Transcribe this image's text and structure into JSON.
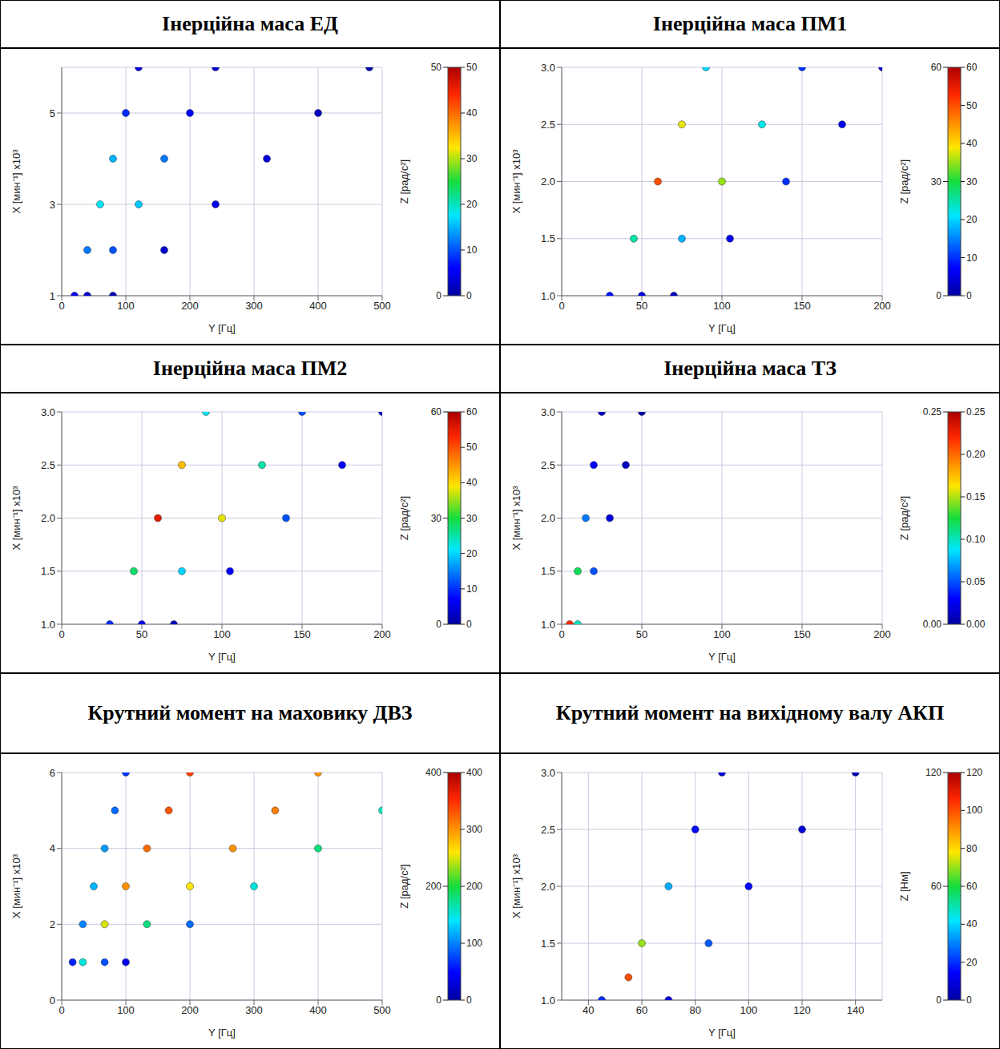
{
  "chart_data": [
    {
      "type": "scatter",
      "title": "Інерційна маса ЕД",
      "x_label": "Y",
      "x_unit": "[Гц]",
      "y_label": "X",
      "y_unit": "[мин⁻¹]",
      "y_scale_label": "x10³",
      "z_label": "Z",
      "z_unit": "[рад/с²]",
      "grid": true,
      "xlim": [
        0,
        500
      ],
      "xticks": [
        0,
        100,
        200,
        300,
        400,
        500
      ],
      "ylim": [
        1,
        6
      ],
      "yticks": [
        1,
        3,
        5
      ],
      "zticks": [
        0,
        50
      ],
      "colorbar": {
        "range": [
          0,
          50
        ],
        "ticks": [
          0,
          10,
          20,
          30,
          40,
          50
        ]
      },
      "x": [
        20,
        40,
        60,
        80,
        100,
        120,
        40,
        80,
        120,
        160,
        200,
        240,
        80,
        160,
        240,
        320,
        400,
        480
      ],
      "y": [
        1,
        2,
        3,
        4,
        5,
        6,
        1,
        2,
        3,
        4,
        5,
        6,
        1,
        2,
        3,
        4,
        5,
        6
      ],
      "z": [
        5,
        12,
        18,
        15,
        8,
        4,
        3,
        10,
        16,
        12,
        6,
        3,
        1,
        3,
        5,
        4,
        2,
        1
      ]
    },
    {
      "type": "scatter",
      "title": "Інерційна маса ПМ1",
      "x_label": "Y",
      "x_unit": "[Гц]",
      "y_label": "X",
      "y_unit": "[мин⁻¹]",
      "y_scale_label": "x10³",
      "z_label": "Z",
      "z_unit": "[рад/с²]",
      "grid": true,
      "xlim": [
        0,
        200
      ],
      "xticks": [
        0,
        50,
        100,
        150,
        200
      ],
      "ylim": [
        1,
        3
      ],
      "yticks": [
        {
          "value": 1,
          "label": "1.0"
        },
        1.5,
        {
          "value": 2,
          "label": "2.0"
        },
        2.5,
        {
          "value": 3,
          "label": "3.0"
        }
      ],
      "zticks": [
        0,
        30,
        60
      ],
      "colorbar": {
        "range": [
          0,
          60
        ],
        "ticks": [
          0,
          10,
          20,
          30,
          40,
          50,
          60
        ]
      },
      "x": [
        30,
        45,
        60,
        75,
        90,
        50,
        75,
        100,
        125,
        150,
        70,
        105,
        140,
        175,
        200
      ],
      "y": [
        1,
        1.5,
        2,
        2.5,
        3,
        1,
        1.5,
        2,
        2.5,
        3,
        1,
        1.5,
        2,
        2.5,
        3
      ],
      "z": [
        8,
        25,
        50,
        38,
        20,
        5,
        18,
        35,
        22,
        10,
        2,
        6,
        10,
        6,
        3
      ]
    },
    {
      "type": "scatter",
      "title": "Інерційна маса ПМ2",
      "x_label": "Y",
      "x_unit": "[Гц]",
      "y_label": "X",
      "y_unit": "[мин⁻¹]",
      "y_scale_label": "x10³",
      "z_label": "Z",
      "z_unit": "[рад/с²]",
      "grid": true,
      "xlim": [
        0,
        200
      ],
      "xticks": [
        0,
        50,
        100,
        150,
        200
      ],
      "ylim": [
        1,
        3
      ],
      "yticks": [
        {
          "value": 1,
          "label": "1.0"
        },
        1.5,
        {
          "value": 2,
          "label": "2.0"
        },
        2.5,
        {
          "value": 3,
          "label": "3.0"
        }
      ],
      "zticks": [
        0,
        30,
        60
      ],
      "colorbar": {
        "range": [
          0,
          60
        ],
        "ticks": [
          0,
          10,
          20,
          30,
          40,
          50,
          60
        ]
      },
      "x": [
        30,
        45,
        60,
        75,
        90,
        50,
        75,
        100,
        125,
        150,
        70,
        105,
        140,
        175,
        200
      ],
      "y": [
        1,
        1.5,
        2,
        2.5,
        3,
        1,
        1.5,
        2,
        2.5,
        3,
        1,
        1.5,
        2,
        2.5,
        3
      ],
      "z": [
        10,
        28,
        55,
        42,
        22,
        6,
        20,
        38,
        25,
        12,
        2,
        7,
        12,
        7,
        3
      ]
    },
    {
      "type": "scatter",
      "title": "Інерційна маса ТЗ",
      "x_label": "Y",
      "x_unit": "[Гц]",
      "y_label": "X",
      "y_unit": "[мин⁻¹]",
      "y_scale_label": "x10³",
      "z_label": "Z",
      "z_unit": "[рад/с²]",
      "grid": true,
      "xlim": [
        0,
        200
      ],
      "xticks": [
        0,
        50,
        100,
        150,
        200
      ],
      "ylim": [
        1,
        3
      ],
      "yticks": [
        {
          "value": 1,
          "label": "1.0"
        },
        1.5,
        {
          "value": 2,
          "label": "2.0"
        },
        2.5,
        {
          "value": 3,
          "label": "3.0"
        }
      ],
      "zticks": [
        {
          "value": 0,
          "label": "0.00"
        },
        0.25
      ],
      "colorbar": {
        "range": [
          0,
          0.25
        ],
        "ticks": [
          {
            "value": 0,
            "label": "0.00"
          },
          0.05,
          {
            "value": 0.1,
            "label": "0.10"
          },
          0.15,
          {
            "value": 0.2,
            "label": "0.20"
          },
          0.25
        ]
      },
      "x": [
        5,
        10,
        15,
        20,
        25,
        10,
        20,
        30,
        40,
        50
      ],
      "y": [
        1,
        1.5,
        2,
        2.5,
        3,
        1,
        1.5,
        2,
        2.5,
        3
      ],
      "z": [
        0.22,
        0.12,
        0.06,
        0.03,
        0.01,
        0.1,
        0.05,
        0.02,
        0.01,
        0.005
      ]
    },
    {
      "type": "scatter",
      "title": "Крутний момент на маховику ДВЗ",
      "x_label": "Y",
      "x_unit": "[Гц]",
      "y_label": "X",
      "y_unit": "[мин⁻¹]",
      "y_scale_label": "x10³",
      "z_label": "Z",
      "z_unit": "[рад/с²]",
      "grid": true,
      "xlim": [
        0,
        500
      ],
      "xticks": [
        0,
        100,
        200,
        300,
        400,
        500
      ],
      "ylim": [
        0,
        6
      ],
      "yticks": [
        0,
        2,
        4,
        6
      ],
      "zticks": [
        0,
        200,
        400
      ],
      "colorbar": {
        "range": [
          0,
          400
        ],
        "ticks": [
          0,
          100,
          200,
          300,
          400
        ]
      },
      "x": [
        33,
        67,
        100,
        133,
        167,
        200,
        67,
        133,
        200,
        267,
        333,
        400,
        100,
        200,
        300,
        400,
        500,
        17,
        33,
        50,
        67,
        83,
        100
      ],
      "y": [
        1,
        2,
        3,
        4,
        5,
        6,
        1,
        2,
        3,
        4,
        5,
        6,
        1,
        2,
        3,
        4,
        5,
        1,
        2,
        3,
        4,
        5,
        6
      ],
      "z": [
        150,
        250,
        300,
        320,
        330,
        340,
        80,
        180,
        260,
        300,
        310,
        300,
        40,
        90,
        150,
        180,
        160,
        60,
        100,
        120,
        110,
        90,
        70
      ]
    },
    {
      "type": "scatter",
      "title": "Крутний момент на вихідному валу АКП",
      "x_label": "Y",
      "x_unit": "[Гц]",
      "y_label": "X",
      "y_unit": "[мин⁻¹]",
      "y_scale_label": "x10³",
      "z_label": "Z",
      "z_unit": "[Нм]",
      "grid": true,
      "xlim": [
        30,
        150
      ],
      "xticks": [
        40,
        60,
        80,
        100,
        120,
        140
      ],
      "ylim": [
        1,
        3
      ],
      "yticks": [
        {
          "value": 1,
          "label": "1.0"
        },
        1.5,
        {
          "value": 2,
          "label": "2.0"
        },
        2.5,
        {
          "value": 3,
          "label": "3.0"
        }
      ],
      "zticks": [
        0,
        60,
        120
      ],
      "colorbar": {
        "range": [
          0,
          120
        ],
        "ticks": [
          0,
          20,
          40,
          60,
          80,
          100,
          120
        ]
      },
      "x": [
        45,
        55,
        60,
        70,
        80,
        90,
        70,
        85,
        100,
        120,
        140
      ],
      "y": [
        1,
        1.2,
        1.5,
        2,
        2.5,
        3,
        1,
        1.5,
        2,
        2.5,
        3
      ],
      "z": [
        20,
        100,
        70,
        35,
        15,
        8,
        10,
        25,
        15,
        8,
        4
      ]
    }
  ]
}
